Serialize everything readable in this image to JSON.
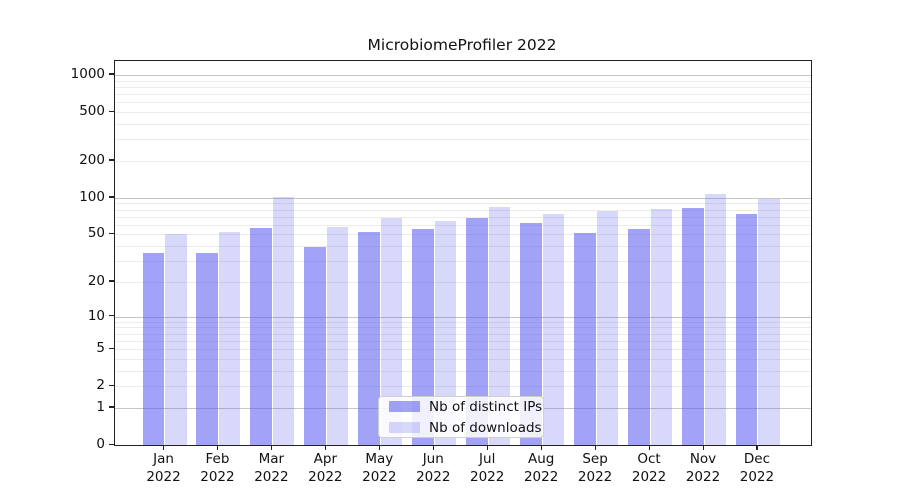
{
  "chart_data": {
    "type": "bar",
    "title": "MicrobiomeProfiler 2022",
    "xlabel": "",
    "ylabel": "",
    "months": [
      "Jan",
      "Feb",
      "Mar",
      "Apr",
      "May",
      "Jun",
      "Jul",
      "Aug",
      "Sep",
      "Oct",
      "Nov",
      "Dec"
    ],
    "year": "2022",
    "yscale": "log1p",
    "yticks": [
      0,
      1,
      2,
      5,
      10,
      20,
      50,
      100,
      200,
      500,
      1000
    ],
    "ylim": [
      0,
      1300
    ],
    "grid": {
      "on": true,
      "major_lines": [
        1,
        10,
        100,
        1000
      ],
      "minor_lines": [
        2,
        3,
        4,
        5,
        6,
        7,
        8,
        9,
        20,
        30,
        40,
        50,
        60,
        70,
        80,
        90,
        200,
        300,
        400,
        500,
        600,
        700,
        800,
        900
      ]
    },
    "legend_position": "lower center",
    "series": [
      {
        "name": "Nb of distinct IPs",
        "color": "rgba(90,90,240,0.56)",
        "values": [
          35,
          35,
          57,
          39,
          52,
          55,
          68,
          62,
          51,
          55,
          83,
          74
        ]
      },
      {
        "name": "Nb of downloads",
        "color": "rgba(90,90,240,0.24)",
        "values": [
          50,
          52,
          102,
          58,
          68,
          64,
          84,
          74,
          78,
          81,
          107,
          98
        ]
      }
    ]
  }
}
